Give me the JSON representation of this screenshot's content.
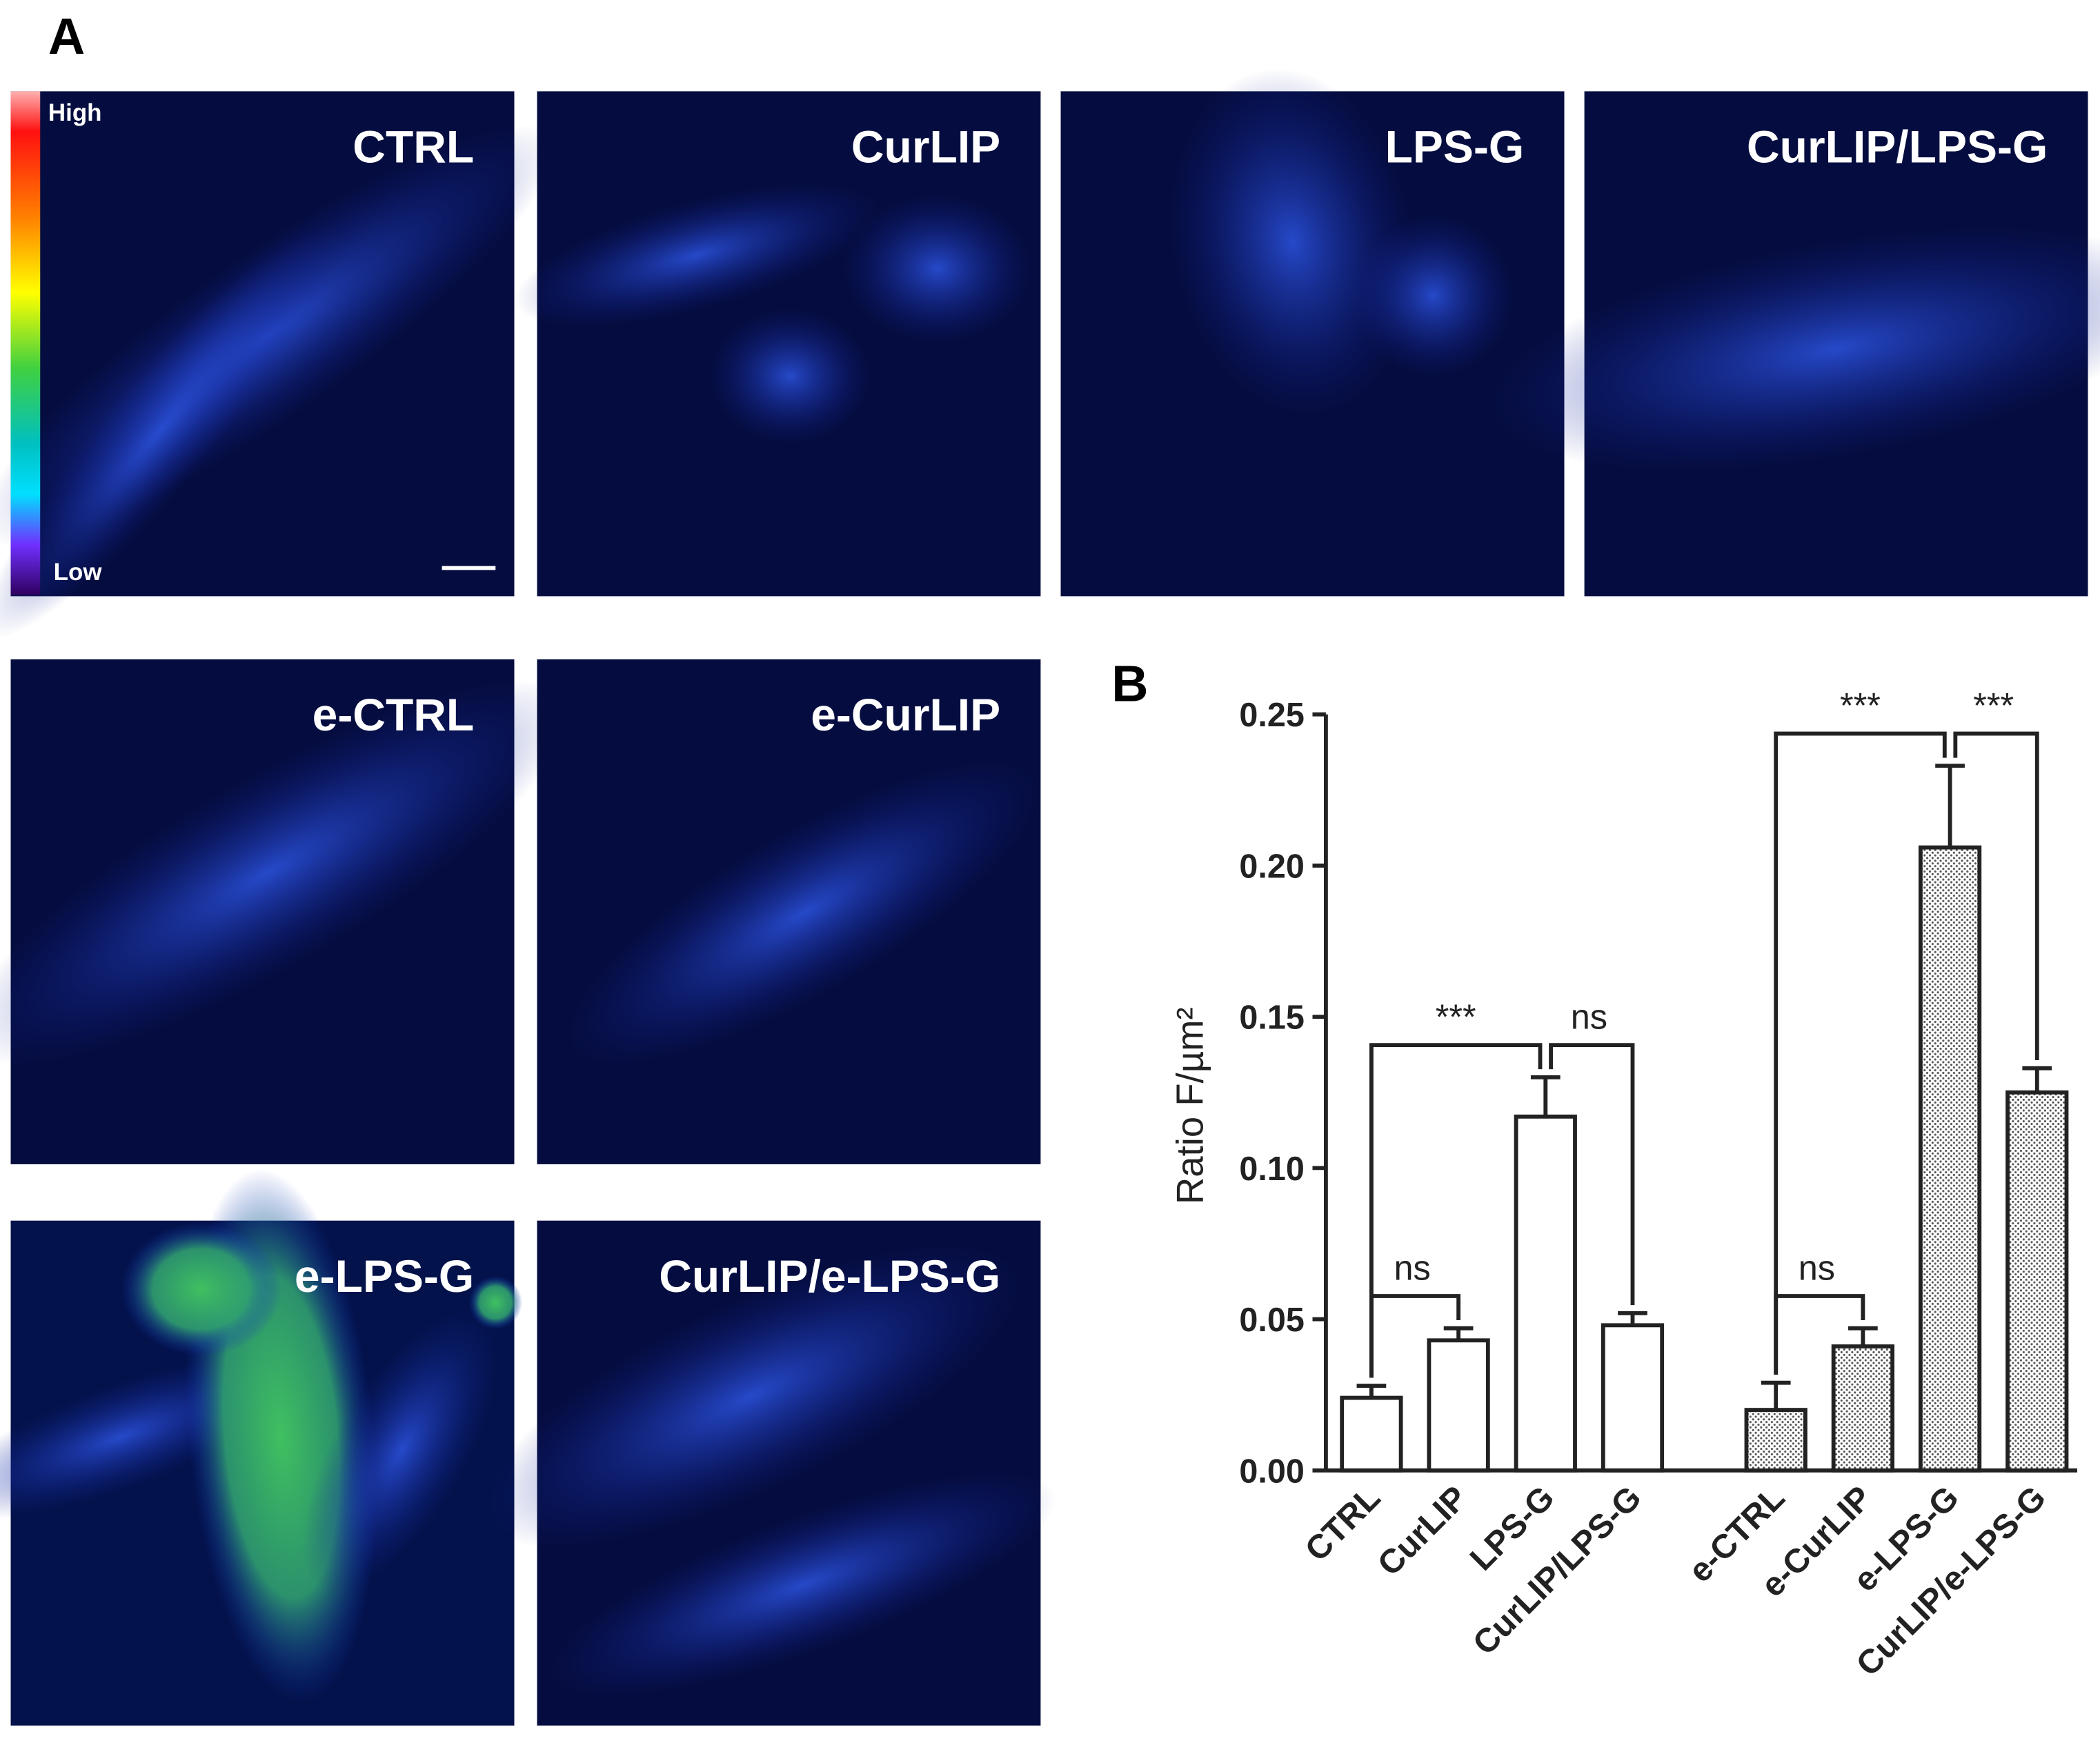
{
  "panel_a": {
    "letter": "A",
    "colorbar": {
      "high": "High",
      "low": "Low"
    },
    "images": [
      {
        "label": "CTRL"
      },
      {
        "label": "CurLIP"
      },
      {
        "label": "LPS-G"
      },
      {
        "label": "CurLIP/LPS-G"
      },
      {
        "label": "e-CTRL"
      },
      {
        "label": "e-CurLIP"
      },
      {
        "label": "e-LPS-G"
      },
      {
        "label": "CurLIP/e-LPS-G"
      }
    ]
  },
  "chart_data": {
    "type": "bar",
    "panel_label": "B",
    "y_label": "Ratio F/µm²",
    "categories": [
      "CTRL",
      "CurLIP",
      "LPS-G",
      "CurLIP/LPS-G",
      "e-CTRL",
      "e-CurLIP",
      "e-LPS-G",
      "CurLIP/e-LPS-G"
    ],
    "values": [
      0.024,
      0.043,
      0.117,
      0.048,
      0.02,
      0.041,
      0.206,
      0.125
    ],
    "errors": [
      0.004,
      0.004,
      0.013,
      0.004,
      0.009,
      0.006,
      0.027,
      0.008
    ],
    "bar_styles": [
      "open",
      "open",
      "open",
      "open",
      "dotted",
      "dotted",
      "dotted",
      "dotted"
    ],
    "ylim": [
      0,
      0.25
    ],
    "yticks": [
      {
        "value": 0,
        "label": "0.00"
      },
      {
        "value": 0.05,
        "label": "0.05"
      },
      {
        "value": 0.1,
        "label": "0.10"
      },
      {
        "value": 0.15,
        "label": "0.15"
      },
      {
        "value": 0.2,
        "label": "0.20"
      },
      {
        "value": 0.25,
        "label": "0.25"
      }
    ],
    "comparisons": [
      {
        "from": 0,
        "to": 1,
        "label": "ns"
      },
      {
        "from": 0,
        "to": 2,
        "label": "***"
      },
      {
        "from": 2,
        "to": 3,
        "label": "ns"
      },
      {
        "from": 4,
        "to": 5,
        "label": "ns"
      },
      {
        "from": 4,
        "to": 6,
        "label": "***"
      },
      {
        "from": 6,
        "to": 7,
        "label": "***"
      }
    ]
  }
}
